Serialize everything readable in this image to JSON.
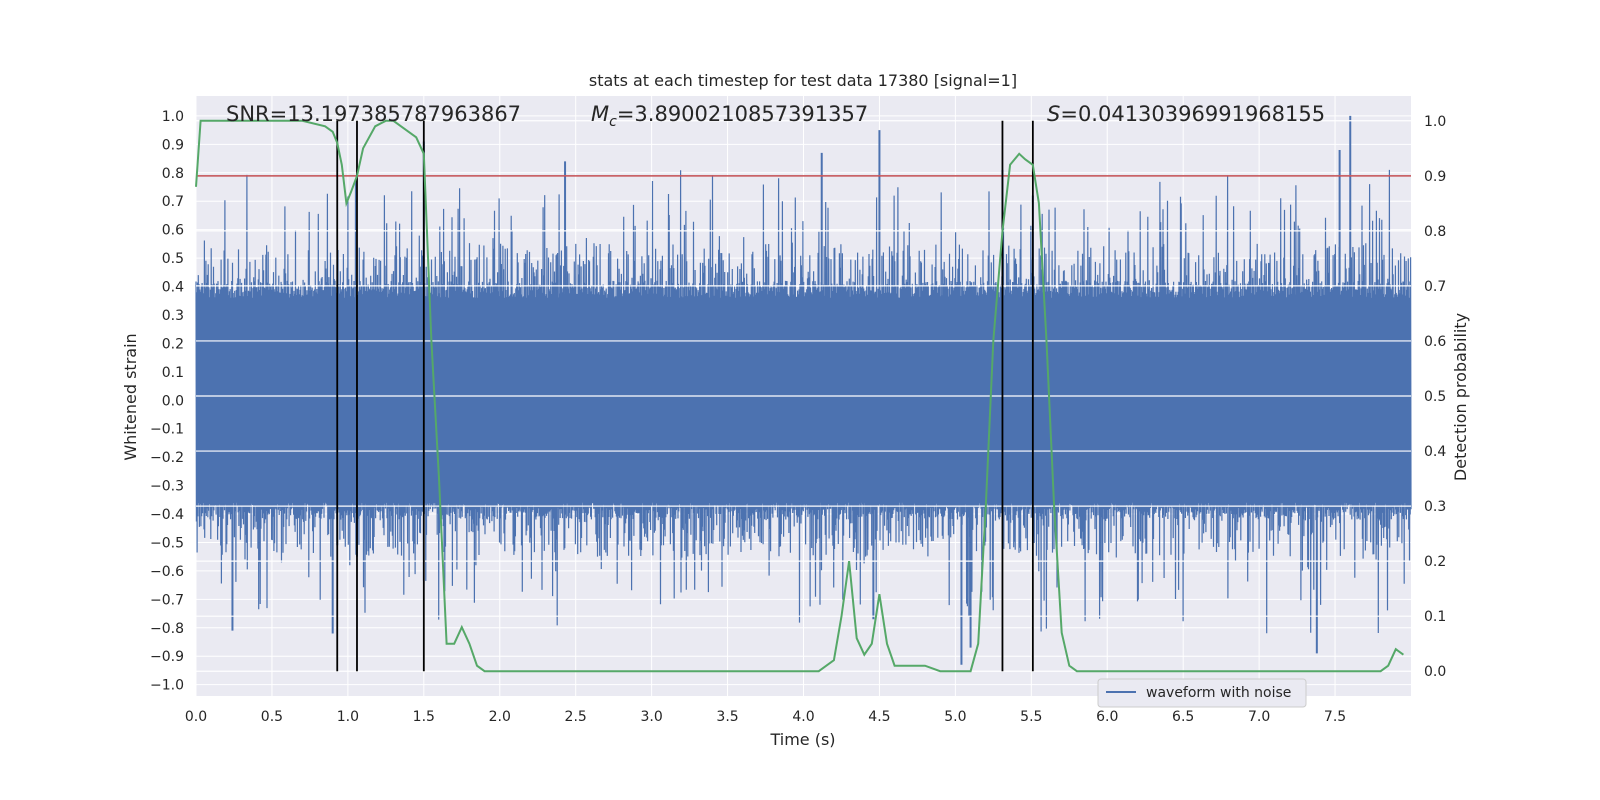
{
  "chart_data": {
    "type": "line",
    "title": "stats at each timestep for test data 17380 [signal=1]",
    "xlabel": "Time (s)",
    "ylabel": "Whitened strain",
    "y2label": "Detection probability",
    "xlim": [
      0,
      8
    ],
    "ylim": [
      -1.04,
      1.07
    ],
    "y2lim": [
      -0.045,
      1.045
    ],
    "xticks": [
      "0.0",
      "0.5",
      "1.0",
      "1.5",
      "2.0",
      "2.5",
      "3.0",
      "3.5",
      "4.0",
      "4.5",
      "5.0",
      "5.5",
      "6.0",
      "6.5",
      "7.0",
      "7.5"
    ],
    "yticks": [
      "1.0",
      "0.9",
      "0.8",
      "0.7",
      "0.6",
      "0.5",
      "0.4",
      "0.3",
      "0.2",
      "0.1",
      "0.0",
      "−0.1",
      "−0.2",
      "−0.3",
      "−0.4",
      "−0.5",
      "−0.6",
      "−0.7",
      "−0.8",
      "−0.9",
      "−1.0"
    ],
    "y2ticks": [
      "1.0",
      "0.9",
      "0.8",
      "0.7",
      "0.6",
      "0.5",
      "0.4",
      "0.3",
      "0.2",
      "0.1",
      "0.0"
    ],
    "grid": true,
    "legend": {
      "placement": "bottom-center",
      "entries": [
        "waveform with noise"
      ]
    },
    "annotations": {
      "snr": "SNR=13.197385787963867",
      "mc_symbol": "M",
      "mc_sub": "c",
      "mc_value": "=3.8900210857391357",
      "s_symbol": "S",
      "s_value": "=0.04130396991968155"
    },
    "threshold": {
      "axis": "y2",
      "value": 0.9,
      "color": "#c44e52"
    },
    "vertical_markers": [
      0.93,
      1.06,
      1.5,
      5.31,
      5.51
    ],
    "waveform": {
      "name": "waveform with noise",
      "color": "#4c72b0",
      "t_range": [
        0,
        8
      ],
      "core_amplitude": 0.36,
      "peak_amplitude_typical": 0.55,
      "notable_peaks": [
        {
          "t": 0.93,
          "y": -0.51
        },
        {
          "t": 1.06,
          "y": -0.55
        },
        {
          "t": 1.5,
          "y": 0.91
        },
        {
          "t": 2.43,
          "y": 0.84
        },
        {
          "t": 4.12,
          "y": 0.87
        },
        {
          "t": 4.5,
          "y": 0.95
        },
        {
          "t": 5.04,
          "y": -0.93
        },
        {
          "t": 5.1,
          "y": -0.87
        },
        {
          "t": 5.31,
          "y": 0.81
        },
        {
          "t": 5.51,
          "y": 0.72
        },
        {
          "t": 7.6,
          "y": 1.0
        },
        {
          "t": 7.53,
          "y": 0.88
        },
        {
          "t": 7.38,
          "y": -0.89
        },
        {
          "t": 0.9,
          "y": -0.82
        },
        {
          "t": 0.24,
          "y": -0.81
        },
        {
          "t": 4.46,
          "y": -0.77
        }
      ]
    },
    "series": [
      {
        "name": "",
        "axis": "y2",
        "color": "#55a868",
        "x": [
          0.0,
          0.03,
          0.08,
          0.15,
          0.3,
          0.5,
          0.7,
          0.85,
          0.9,
          0.93,
          0.96,
          0.99,
          1.02,
          1.06,
          1.1,
          1.18,
          1.25,
          1.3,
          1.35,
          1.4,
          1.45,
          1.5,
          1.55,
          1.6,
          1.65,
          1.7,
          1.75,
          1.8,
          1.85,
          1.9,
          2.0,
          2.2,
          2.4,
          2.6,
          2.8,
          3.0,
          3.2,
          3.4,
          3.6,
          3.8,
          4.0,
          4.1,
          4.15,
          4.2,
          4.25,
          4.3,
          4.35,
          4.4,
          4.45,
          4.5,
          4.55,
          4.6,
          4.65,
          4.7,
          4.8,
          4.9,
          5.0,
          5.1,
          5.15,
          5.2,
          5.25,
          5.31,
          5.36,
          5.42,
          5.46,
          5.51,
          5.55,
          5.6,
          5.65,
          5.7,
          5.75,
          5.8,
          6.0,
          6.2,
          6.4,
          6.6,
          6.8,
          7.0,
          7.2,
          7.4,
          7.6,
          7.8,
          7.85,
          7.9,
          7.95
        ],
        "y": [
          0.88,
          1.0,
          1.0,
          1.0,
          1.0,
          1.0,
          1.0,
          0.99,
          0.98,
          0.96,
          0.92,
          0.85,
          0.87,
          0.9,
          0.95,
          0.99,
          1.0,
          1.0,
          0.99,
          0.98,
          0.97,
          0.94,
          0.6,
          0.35,
          0.05,
          0.05,
          0.08,
          0.05,
          0.01,
          0.0,
          0.0,
          0.0,
          0.0,
          0.0,
          0.0,
          0.0,
          0.0,
          0.0,
          0.0,
          0.0,
          0.0,
          0.0,
          0.01,
          0.02,
          0.1,
          0.2,
          0.06,
          0.03,
          0.05,
          0.14,
          0.05,
          0.01,
          0.01,
          0.01,
          0.01,
          0.0,
          0.0,
          0.0,
          0.05,
          0.3,
          0.6,
          0.8,
          0.92,
          0.94,
          0.93,
          0.92,
          0.85,
          0.6,
          0.3,
          0.07,
          0.01,
          0.0,
          0.0,
          0.0,
          0.0,
          0.0,
          0.0,
          0.0,
          0.0,
          0.0,
          0.0,
          0.0,
          0.01,
          0.04,
          0.03
        ]
      }
    ]
  }
}
